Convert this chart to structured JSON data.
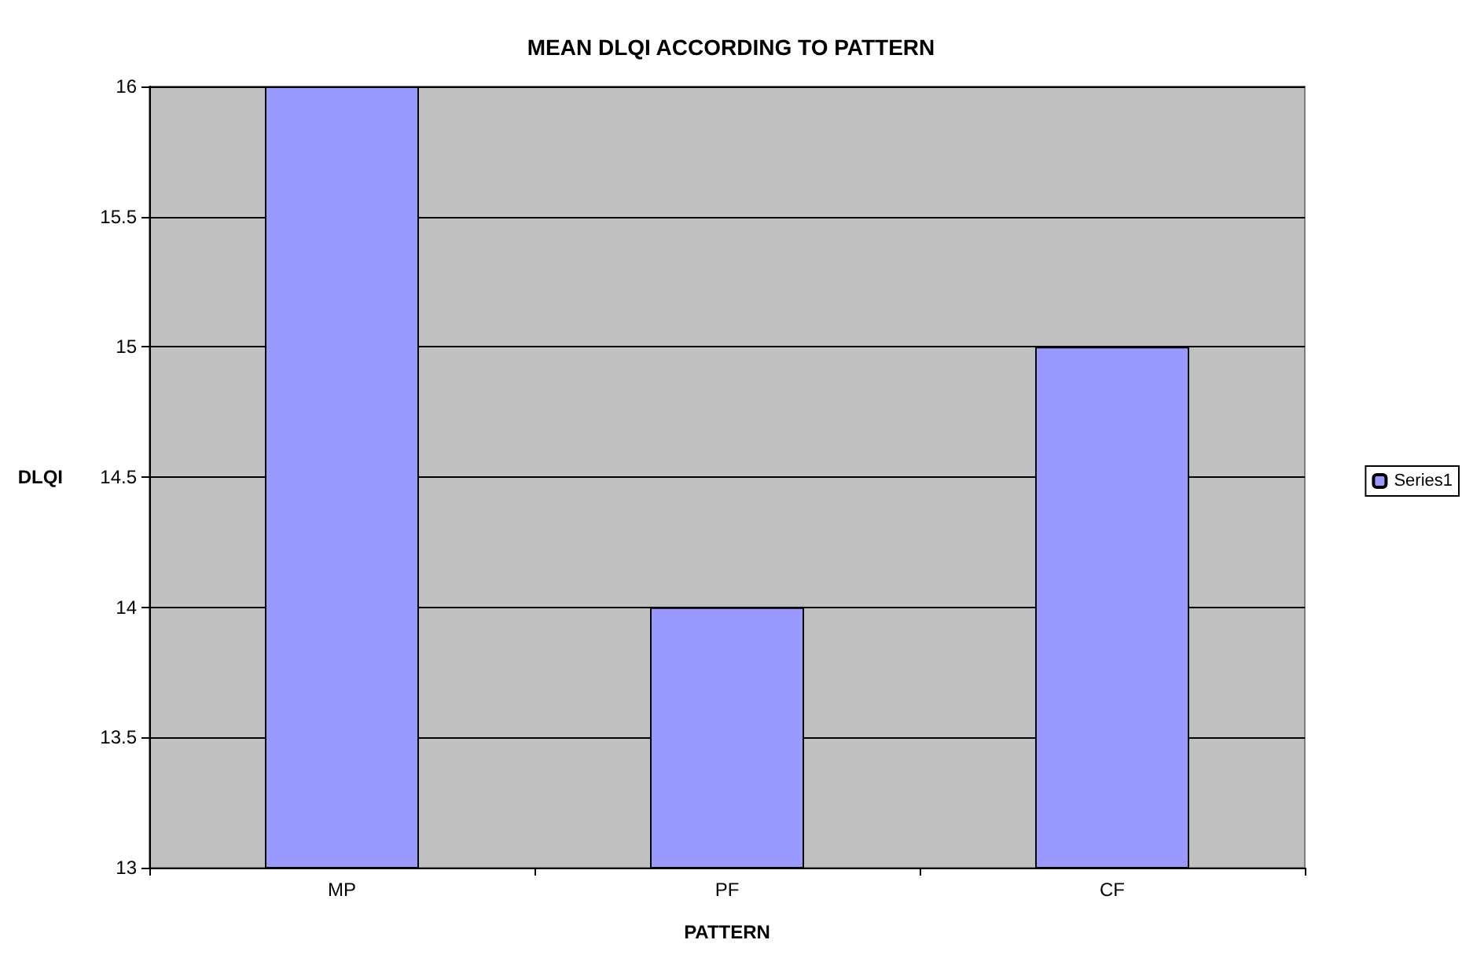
{
  "chart_data": {
    "type": "bar",
    "title": "MEAN DLQI ACCORDING TO PATTERN",
    "xlabel": "PATTERN",
    "ylabel": "DLQI",
    "categories": [
      "MP",
      "PF",
      "CF"
    ],
    "series": [
      {
        "name": "Series1",
        "color": "#9999ff",
        "values": [
          16,
          14,
          15
        ]
      }
    ],
    "ylim": [
      13,
      16
    ],
    "yticks": [
      13,
      13.5,
      14,
      14.5,
      15,
      15.5,
      16
    ],
    "grid": "y",
    "legend": "right"
  }
}
